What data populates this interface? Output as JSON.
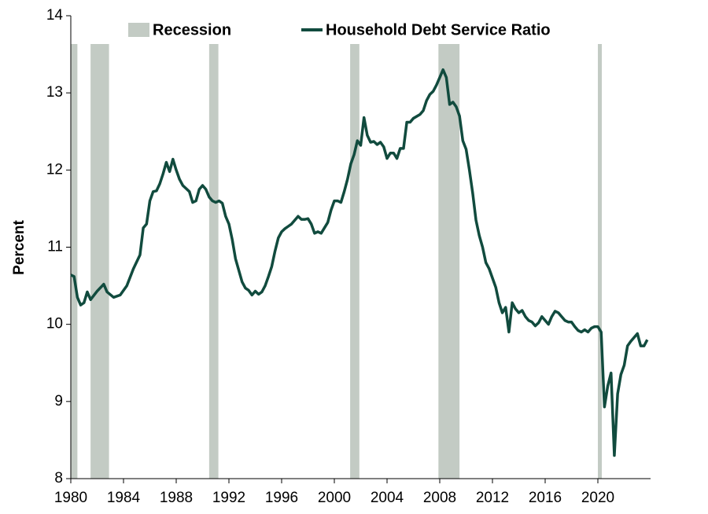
{
  "chart_data": {
    "type": "line",
    "y_label": "Percent",
    "xlim": [
      1980,
      2024
    ],
    "xticks": [
      1980,
      1984,
      1988,
      1992,
      1996,
      2000,
      2004,
      2008,
      2012,
      2016,
      2020
    ],
    "ylim": [
      8,
      14
    ],
    "yticks": [
      8,
      9,
      10,
      11,
      12,
      13,
      14
    ],
    "grid": false,
    "legend": "top",
    "recession": {
      "name": "Recession",
      "color": "#c3cbc4",
      "spans": [
        [
          1980.0,
          1980.5
        ],
        [
          1981.5,
          1982.9
        ],
        [
          1990.5,
          1991.2
        ],
        [
          2001.2,
          2001.9
        ],
        [
          2007.9,
          2009.5
        ],
        [
          2020.0,
          2020.3
        ]
      ]
    },
    "x": [
      1980.0,
      1980.25,
      1980.5,
      1980.75,
      1981.0,
      1981.25,
      1981.5,
      1982.0,
      1982.5,
      1982.75,
      1983.25,
      1983.75,
      1984.25,
      1984.75,
      1985.25,
      1985.5,
      1985.75,
      1986.0,
      1986.25,
      1986.5,
      1986.75,
      1987.0,
      1987.25,
      1987.5,
      1987.75,
      1988.0,
      1988.25,
      1988.5,
      1988.75,
      1989.0,
      1989.25,
      1989.5,
      1989.75,
      1990.0,
      1990.25,
      1990.5,
      1990.75,
      1991.0,
      1991.25,
      1991.5,
      1991.75,
      1992.0,
      1992.25,
      1992.5,
      1992.75,
      1993.0,
      1993.25,
      1993.5,
      1993.75,
      1994.0,
      1994.25,
      1994.5,
      1994.75,
      1995.0,
      1995.25,
      1995.5,
      1995.75,
      1996.0,
      1996.25,
      1996.5,
      1996.75,
      1997.0,
      1997.25,
      1997.5,
      1997.75,
      1998.0,
      1998.25,
      1998.5,
      1998.75,
      1999.0,
      1999.25,
      1999.5,
      1999.75,
      2000.0,
      2000.25,
      2000.5,
      2000.75,
      2001.0,
      2001.25,
      2001.5,
      2001.75,
      2002.0,
      2002.25,
      2002.5,
      2002.75,
      2003.0,
      2003.25,
      2003.5,
      2003.75,
      2004.0,
      2004.25,
      2004.5,
      2004.75,
      2005.0,
      2005.25,
      2005.5,
      2005.75,
      2006.0,
      2006.5,
      2006.75,
      2007.0,
      2007.25,
      2007.5,
      2007.75,
      2008.0,
      2008.25,
      2008.5,
      2008.75,
      2009.0,
      2009.25,
      2009.5,
      2009.75,
      2010.0,
      2010.25,
      2010.5,
      2010.75,
      2011.0,
      2011.25,
      2011.5,
      2011.75,
      2012.0,
      2012.25,
      2012.5,
      2012.75,
      2013.0,
      2013.25,
      2013.5,
      2013.75,
      2014.0,
      2014.25,
      2014.5,
      2014.75,
      2015.0,
      2015.25,
      2015.5,
      2015.75,
      2016.0,
      2016.25,
      2016.5,
      2016.75,
      2017.0,
      2017.25,
      2017.5,
      2017.75,
      2018.0,
      2018.25,
      2018.5,
      2018.75,
      2019.0,
      2019.25,
      2019.5,
      2019.75,
      2020.0,
      2020.25,
      2020.5,
      2020.75,
      2021.0,
      2021.25,
      2021.5,
      2021.75,
      2022.0,
      2022.25,
      2022.5,
      2022.75,
      2023.0,
      2023.25,
      2023.5,
      2023.75
    ],
    "series": [
      {
        "name": "Household Debt Service Ratio",
        "color": "#114b3e",
        "values": [
          10.64,
          10.62,
          10.35,
          10.25,
          10.28,
          10.42,
          10.32,
          10.43,
          10.52,
          10.42,
          10.35,
          10.38,
          10.5,
          10.72,
          10.9,
          11.25,
          11.3,
          11.6,
          11.72,
          11.73,
          11.82,
          11.95,
          12.1,
          11.98,
          12.14,
          12.0,
          11.88,
          11.8,
          11.76,
          11.72,
          11.58,
          11.6,
          11.75,
          11.8,
          11.75,
          11.65,
          11.6,
          11.58,
          11.6,
          11.57,
          11.4,
          11.3,
          11.1,
          10.85,
          10.7,
          10.55,
          10.47,
          10.44,
          10.38,
          10.43,
          10.39,
          10.42,
          10.5,
          10.62,
          10.75,
          10.95,
          11.12,
          11.2,
          11.24,
          11.27,
          11.3,
          11.35,
          11.4,
          11.36,
          11.36,
          11.37,
          11.3,
          11.18,
          11.2,
          11.18,
          11.25,
          11.32,
          11.48,
          11.6,
          11.6,
          11.58,
          11.72,
          11.88,
          12.08,
          12.2,
          12.38,
          12.32,
          12.68,
          12.45,
          12.36,
          12.37,
          12.33,
          12.36,
          12.3,
          12.15,
          12.22,
          12.22,
          12.15,
          12.28,
          12.28,
          12.62,
          12.62,
          12.67,
          12.72,
          12.77,
          12.9,
          12.98,
          13.02,
          13.1,
          13.2,
          13.3,
          13.2,
          12.85,
          12.88,
          12.82,
          12.7,
          12.38,
          12.27,
          12.0,
          11.7,
          11.35,
          11.15,
          11.0,
          10.8,
          10.72,
          10.6,
          10.48,
          10.28,
          10.15,
          10.22,
          9.9,
          10.28,
          10.2,
          10.15,
          10.18,
          10.1,
          10.05,
          10.03,
          9.98,
          10.02,
          10.1,
          10.05,
          10.0,
          10.1,
          10.17,
          10.15,
          10.1,
          10.05,
          10.03,
          10.03,
          9.97,
          9.92,
          9.9,
          9.93,
          9.9,
          9.95,
          9.97,
          9.97,
          9.9,
          8.93,
          9.2,
          9.37,
          8.3,
          9.1,
          9.35,
          9.47,
          9.72,
          9.78,
          9.83,
          9.88,
          9.72,
          9.72,
          9.8
        ]
      }
    ]
  }
}
